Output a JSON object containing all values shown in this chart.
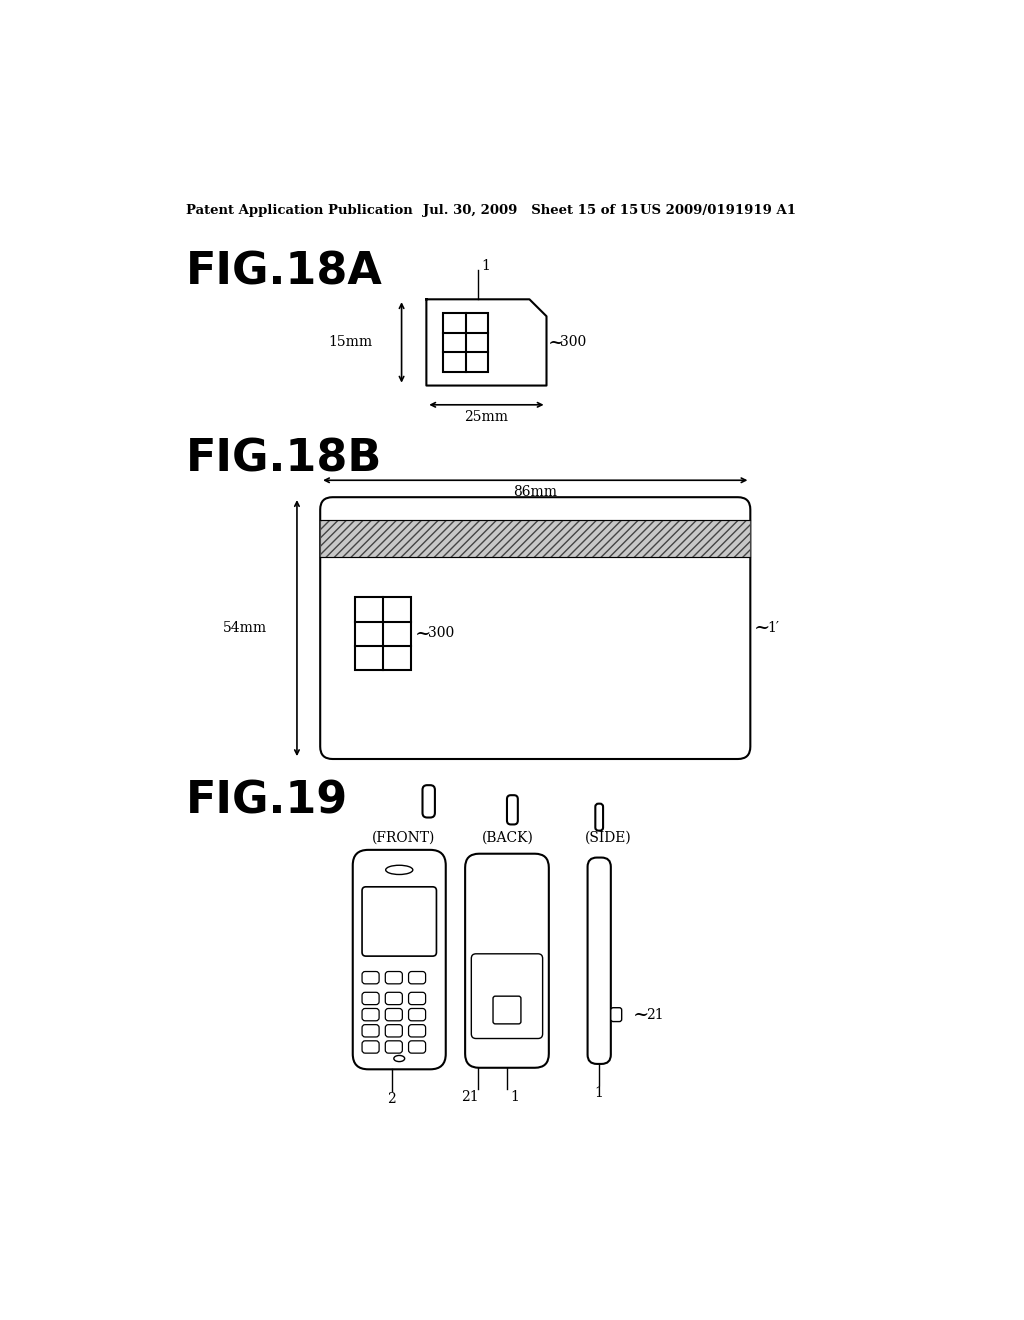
{
  "bg_color": "#ffffff",
  "header_text": "Patent Application Publication",
  "header_date": "Jul. 30, 2009   Sheet 15 of 15",
  "header_patent": "US 2009/0191919 A1",
  "fig18a_label": "FIG.18A",
  "fig18b_label": "FIG.18B",
  "fig19_label": "FIG.19"
}
